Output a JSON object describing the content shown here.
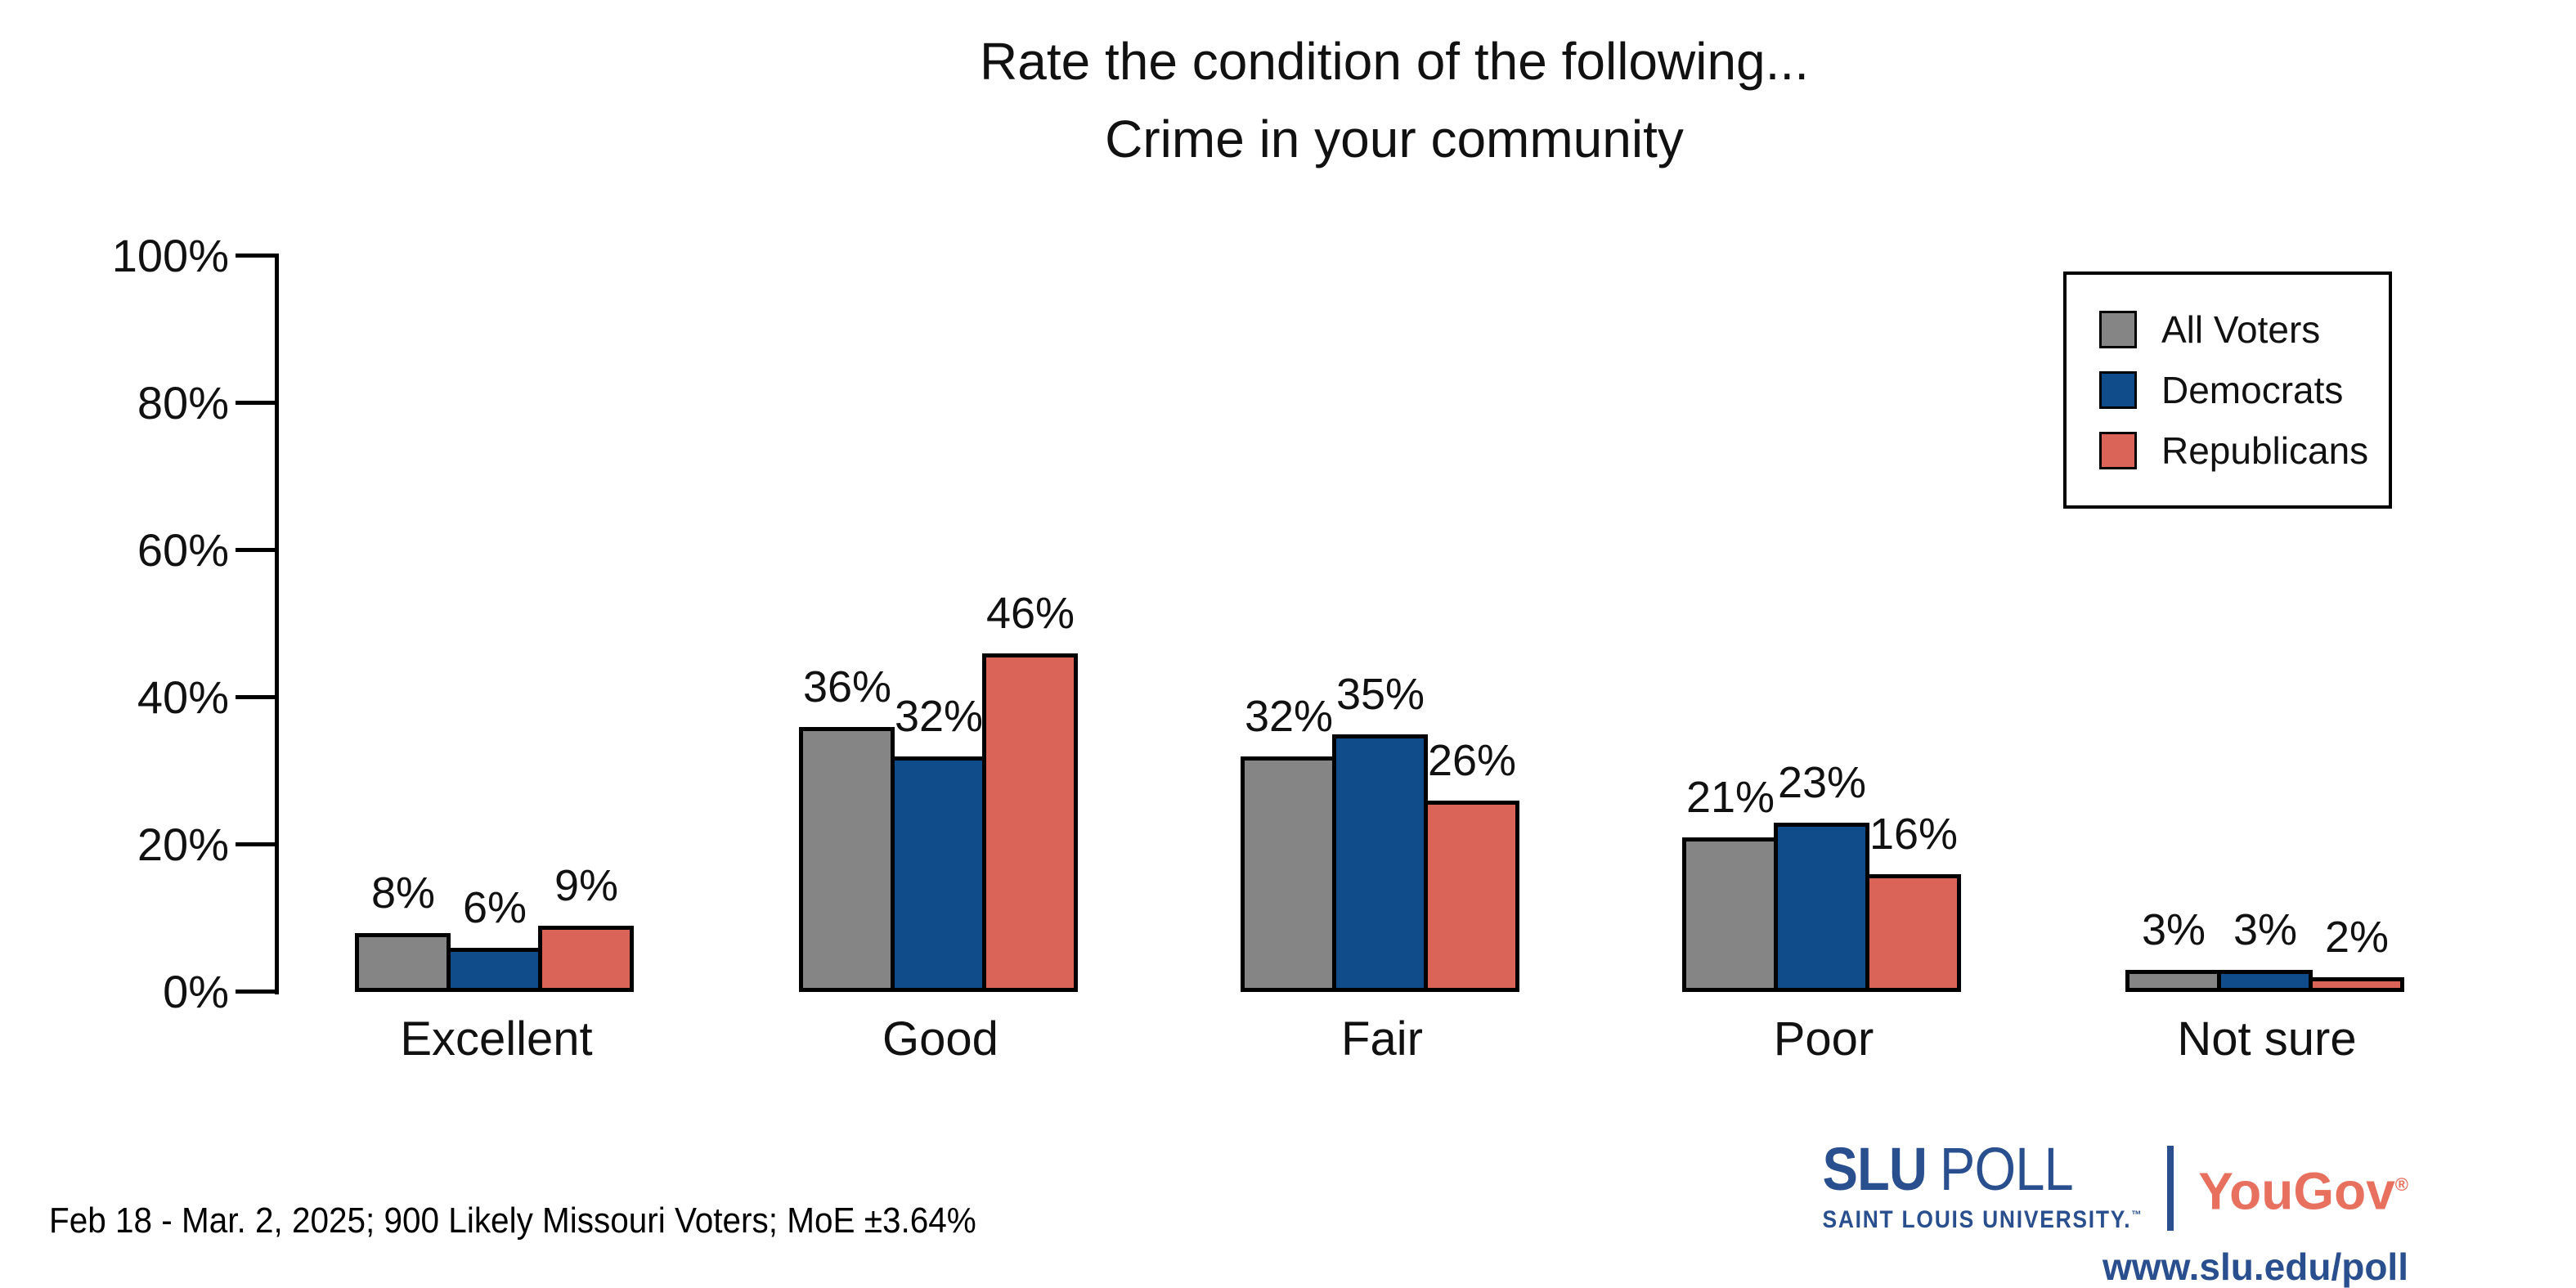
{
  "title": {
    "line1": "Rate the condition of the following...",
    "line2": "Crime in your community"
  },
  "legend": {
    "items": [
      {
        "label": "All Voters",
        "color": "#858585"
      },
      {
        "label": "Democrats",
        "color": "#114c8a"
      },
      {
        "label": "Republicans",
        "color": "#da6457"
      }
    ]
  },
  "chart_data": {
    "type": "bar",
    "title": "Rate the condition of the following... Crime in your community",
    "categories": [
      "Excellent",
      "Good",
      "Fair",
      "Poor",
      "Not sure"
    ],
    "series": [
      {
        "name": "All Voters",
        "color": "#858585",
        "values": [
          8,
          36,
          32,
          21,
          3
        ]
      },
      {
        "name": "Democrats",
        "color": "#114c8a",
        "values": [
          6,
          32,
          35,
          23,
          3
        ]
      },
      {
        "name": "Republicans",
        "color": "#da6457",
        "values": [
          9,
          46,
          26,
          16,
          2
        ]
      }
    ],
    "ytick_labels": [
      "0%",
      "20%",
      "40%",
      "60%",
      "80%",
      "100%"
    ],
    "ylim": [
      0,
      100
    ],
    "ytick_interval": 20,
    "grid": false,
    "legend_position": "top-right",
    "value_label_format": "{value}%",
    "bar_outline_color": "#000000"
  },
  "footer": {
    "note": "Feb 18 - Mar. 2, 2025; 900 Likely Missouri Voters; MoE ±3.64%"
  },
  "branding": {
    "slu_name": "SLU",
    "slu_poll": "POLL",
    "slu_sub": "SAINT LOUIS UNIVERSITY.",
    "slu_tm": "™",
    "yougov": "YouGov",
    "yougov_reg": "®",
    "url": "www.slu.edu/poll",
    "colors": {
      "slu_blue": "#2a4f8e",
      "yougov_red": "#e8705f"
    }
  }
}
